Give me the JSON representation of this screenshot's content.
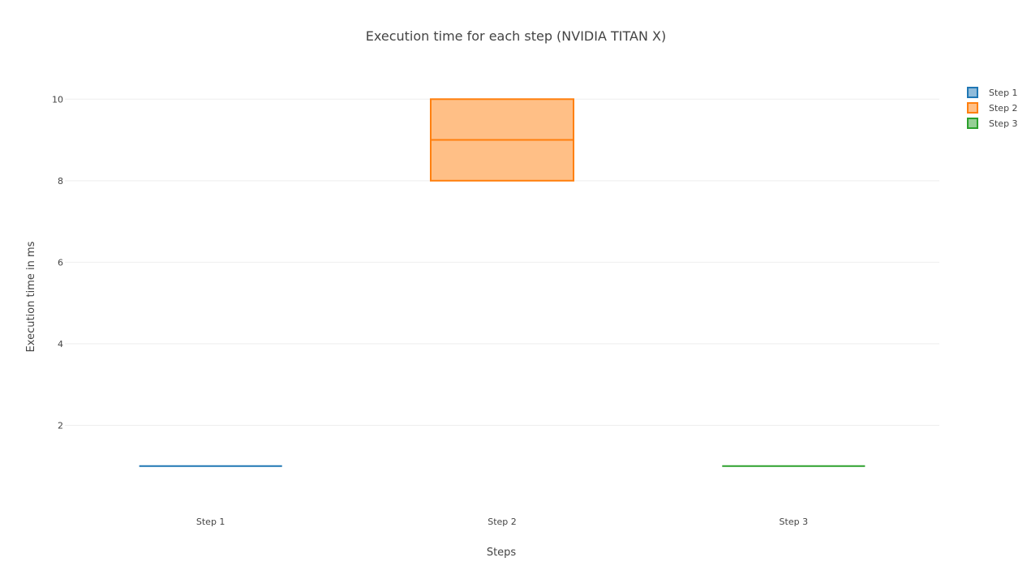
{
  "chart_data": {
    "type": "box",
    "title": "Execution time for each step (NVIDIA TITAN X)",
    "xlabel": "Steps",
    "ylabel": "Execution time in ms",
    "ylim": [
      0,
      11
    ],
    "yticks": [
      2,
      4,
      6,
      8,
      10
    ],
    "categories": [
      "Step 1",
      "Step 2",
      "Step 3"
    ],
    "series": [
      {
        "name": "Step 1",
        "category": "Step 1",
        "color": "#1f77b4",
        "fill": "#8fbbda",
        "q1": 1,
        "median": 1,
        "q3": 1,
        "min": 1,
        "max": 1
      },
      {
        "name": "Step 2",
        "category": "Step 2",
        "color": "#ff7f0e",
        "fill": "#ffbf86",
        "q1": 8,
        "median": 9,
        "q3": 10,
        "min": 8,
        "max": 10
      },
      {
        "name": "Step 3",
        "category": "Step 3",
        "color": "#2ca02c",
        "fill": "#95cf95",
        "q1": 1,
        "median": 1,
        "q3": 1,
        "min": 1,
        "max": 1
      }
    ],
    "legend_position": "top-right",
    "grid": true
  }
}
